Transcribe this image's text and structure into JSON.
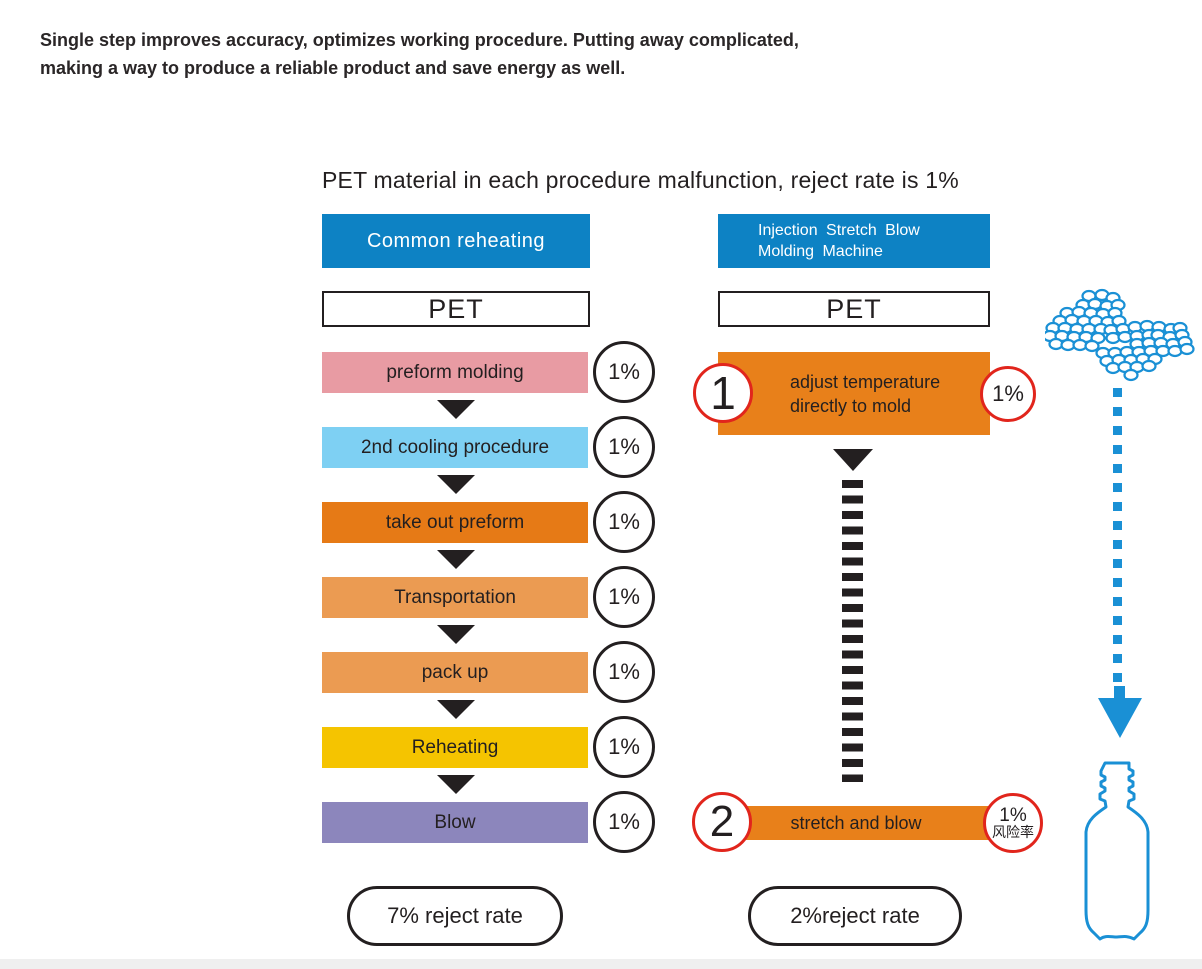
{
  "intro": {
    "line1": "Single step improves accuracy, optimizes working procedure. Putting away complicated,",
    "line2": "making a way to produce a reliable product and save energy as well."
  },
  "title": "PET material in each procedure malfunction, reject rate is 1%",
  "left_flow": {
    "header": "Common reheating",
    "material": "PET",
    "steps": [
      {
        "label": "preform molding",
        "rate": "1%",
        "color": "#e89ba3"
      },
      {
        "label": "2nd cooling procedure",
        "rate": "1%",
        "color": "#7ed0f3"
      },
      {
        "label": "take out preform",
        "rate": "1%",
        "color": "#e67a16"
      },
      {
        "label": "Transportation",
        "rate": "1%",
        "color": "#eb9b52"
      },
      {
        "label": "pack up",
        "rate": "1%",
        "color": "#eb9b52"
      },
      {
        "label": "Reheating",
        "rate": "1%",
        "color": "#f5c400"
      },
      {
        "label": "Blow",
        "rate": "1%",
        "color": "#8c86bc"
      }
    ],
    "result": "7% reject rate"
  },
  "right_flow": {
    "header": {
      "line1": "Injection Stretch Blow",
      "line2": "Molding Machine"
    },
    "material": "PET",
    "step1": {
      "number": "1",
      "label_line1": "adjust temperature",
      "label_line2": "directly to mold",
      "rate": "1%"
    },
    "step2": {
      "number": "2",
      "label": "stretch and blow",
      "rate": "1%",
      "rate_caption": "风险率"
    },
    "result": "2%reject rate"
  },
  "colors": {
    "header_blue": "#0d82c4",
    "step_orange": "#e8801a",
    "process_blue": "#1a90d5",
    "circle_red": "#e1251c",
    "ink": "#231f20",
    "bottom_band": "#efefef"
  },
  "icons": {
    "molecule": "polymer-granules-icon",
    "bottle": "pet-bottle-icon"
  }
}
